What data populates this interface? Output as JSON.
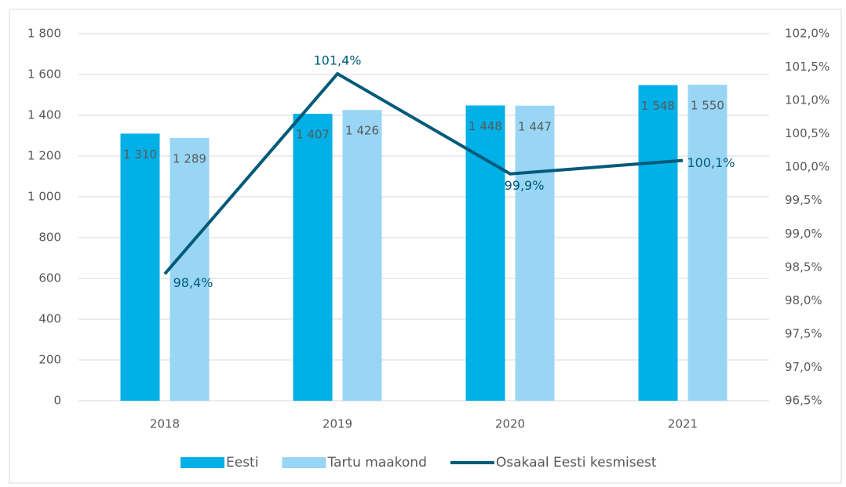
{
  "chart_data": {
    "type": "bar",
    "categories": [
      "2018",
      "2019",
      "2020",
      "2021"
    ],
    "series": [
      {
        "name": "Eesti",
        "color": "#00b0e6",
        "values": [
          1310,
          1407,
          1448,
          1548
        ],
        "value_labels": [
          "1 310",
          "1 407",
          "1 448",
          "1 548"
        ]
      },
      {
        "name": "Tartu maakond",
        "color": "#99d6f5",
        "values": [
          1289,
          1426,
          1447,
          1550
        ],
        "value_labels": [
          "1 289",
          "1 426",
          "1 447",
          "1 550"
        ]
      },
      {
        "name": "Osakaal Eesti kesmisest",
        "color": "#005a7a",
        "type": "line",
        "axis": "y2",
        "values": [
          98.4,
          101.4,
          99.9,
          100.1
        ],
        "value_labels": [
          "98,4%",
          "101,4%",
          "99,9%",
          "100,1%"
        ]
      }
    ],
    "ylim": [
      0,
      1800
    ],
    "yticks": [
      0,
      200,
      400,
      600,
      800,
      {
        "value": 1000,
        "label": "1 000"
      },
      {
        "value": 1200,
        "label": "1 200"
      },
      {
        "value": 1400,
        "label": "1 400"
      },
      {
        "value": 1600,
        "label": "1 600"
      },
      {
        "value": 1800,
        "label": "1 800"
      }
    ],
    "y2lim": [
      96.5,
      102.0
    ],
    "y2ticks": [
      {
        "value": 96.5,
        "label": "96,5%"
      },
      {
        "value": 97.0,
        "label": "97,0%"
      },
      {
        "value": 97.5,
        "label": "97,5%"
      },
      {
        "value": 98.0,
        "label": "98,0%"
      },
      {
        "value": 98.5,
        "label": "98,5%"
      },
      {
        "value": 99.0,
        "label": "99,0%"
      },
      {
        "value": 99.5,
        "label": "99,5%"
      },
      {
        "value": 100.0,
        "label": "100,0%"
      },
      {
        "value": 100.5,
        "label": "100,5%"
      },
      {
        "value": 101.0,
        "label": "101,0%"
      },
      {
        "value": 101.5,
        "label": "101,5%"
      },
      {
        "value": 102.0,
        "label": "102,0%"
      }
    ],
    "grid": true,
    "legend": "bottom"
  }
}
